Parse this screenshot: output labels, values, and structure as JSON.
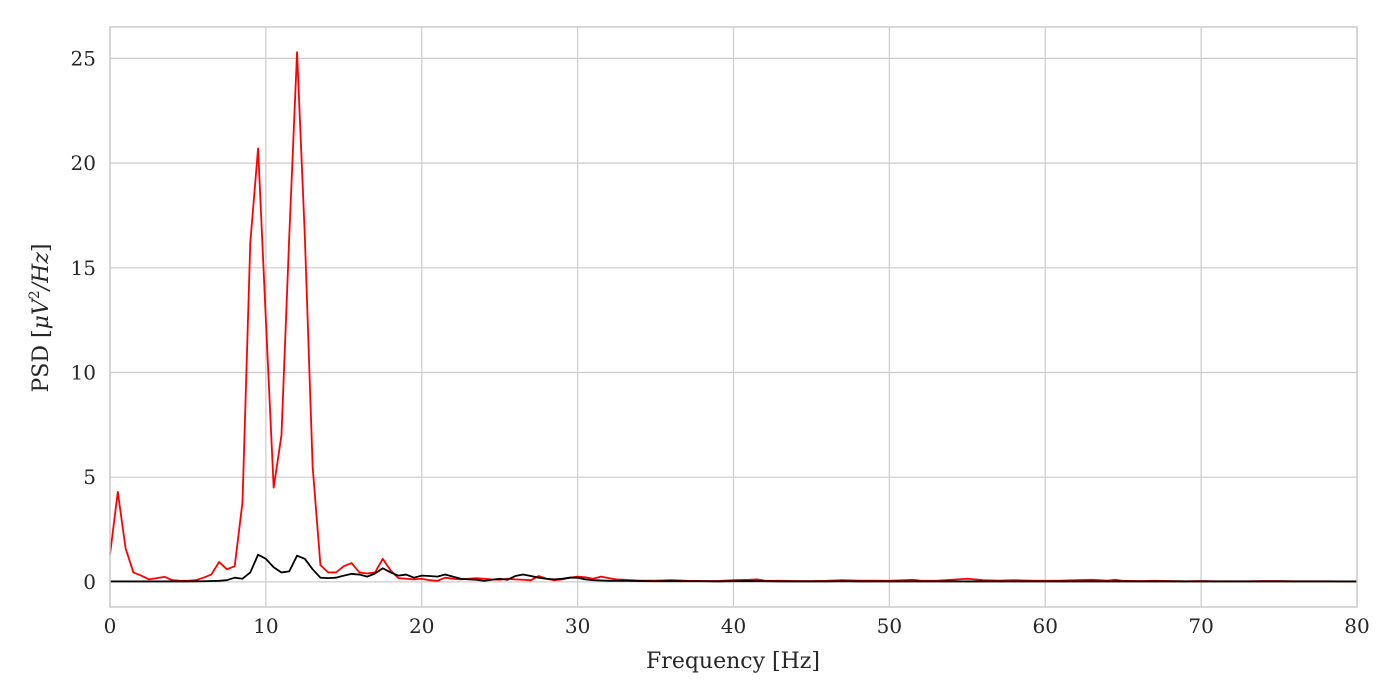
{
  "chart_data": {
    "type": "line",
    "xlabel": "Frequency [Hz]",
    "ylabel_parts": {
      "prefix": "PSD [",
      "mu": "μ",
      "v": "V",
      "exp": "2",
      "slash_hz": "/Hz",
      "suffix": "]"
    },
    "xlim": [
      0,
      80
    ],
    "ylim": [
      -1.2,
      26.5
    ],
    "xticks": [
      0,
      10,
      20,
      30,
      40,
      50,
      60,
      70,
      80
    ],
    "yticks": [
      0,
      5,
      10,
      15,
      20,
      25
    ],
    "grid": true,
    "series": [
      {
        "color": "#ff0000",
        "points": [
          [
            0,
            1.3
          ],
          [
            0.5,
            4.3
          ],
          [
            1,
            1.6
          ],
          [
            1.5,
            0.45
          ],
          [
            2,
            0.3
          ],
          [
            2.5,
            0.12
          ],
          [
            3,
            0.18
          ],
          [
            3.5,
            0.24
          ],
          [
            4,
            0.08
          ],
          [
            4.5,
            0.05
          ],
          [
            5,
            0.05
          ],
          [
            5.5,
            0.08
          ],
          [
            6,
            0.2
          ],
          [
            6.5,
            0.35
          ],
          [
            7,
            0.95
          ],
          [
            7.5,
            0.6
          ],
          [
            8,
            0.75
          ],
          [
            8.5,
            3.8
          ],
          [
            9,
            16.2
          ],
          [
            9.5,
            20.7
          ],
          [
            10,
            12.5
          ],
          [
            10.5,
            4.5
          ],
          [
            11,
            7.0
          ],
          [
            11.5,
            16.5
          ],
          [
            12,
            25.3
          ],
          [
            12.5,
            16.5
          ],
          [
            13,
            5.5
          ],
          [
            13.5,
            0.8
          ],
          [
            14,
            0.45
          ],
          [
            14.5,
            0.45
          ],
          [
            15,
            0.75
          ],
          [
            15.5,
            0.9
          ],
          [
            16,
            0.45
          ],
          [
            16.5,
            0.4
          ],
          [
            17,
            0.45
          ],
          [
            17.5,
            1.1
          ],
          [
            18,
            0.55
          ],
          [
            18.5,
            0.18
          ],
          [
            19,
            0.15
          ],
          [
            19.5,
            0.12
          ],
          [
            20,
            0.15
          ],
          [
            20.5,
            0.08
          ],
          [
            21,
            0.05
          ],
          [
            21.5,
            0.2
          ],
          [
            22,
            0.15
          ],
          [
            22.5,
            0.12
          ],
          [
            23,
            0.15
          ],
          [
            23.5,
            0.18
          ],
          [
            24,
            0.15
          ],
          [
            24.5,
            0.12
          ],
          [
            25,
            0.1
          ],
          [
            25.5,
            0.15
          ],
          [
            26,
            0.12
          ],
          [
            26.5,
            0.1
          ],
          [
            27,
            0.08
          ],
          [
            27.5,
            0.28
          ],
          [
            28,
            0.15
          ],
          [
            28.5,
            0.08
          ],
          [
            29,
            0.12
          ],
          [
            29.5,
            0.2
          ],
          [
            30,
            0.25
          ],
          [
            30.5,
            0.22
          ],
          [
            31,
            0.15
          ],
          [
            31.5,
            0.25
          ],
          [
            32,
            0.18
          ],
          [
            32.5,
            0.12
          ],
          [
            33,
            0.1
          ],
          [
            34,
            0.06
          ],
          [
            35,
            0.06
          ],
          [
            36,
            0.08
          ],
          [
            37,
            0.05
          ],
          [
            38,
            0.04
          ],
          [
            39,
            0.04
          ],
          [
            40,
            0.08
          ],
          [
            41,
            0.1
          ],
          [
            41.5,
            0.12
          ],
          [
            42,
            0.06
          ],
          [
            43,
            0.05
          ],
          [
            44,
            0.04
          ],
          [
            45,
            0.04
          ],
          [
            46,
            0.05
          ],
          [
            47,
            0.08
          ],
          [
            48,
            0.06
          ],
          [
            49,
            0.06
          ],
          [
            50,
            0.05
          ],
          [
            51,
            0.08
          ],
          [
            51.5,
            0.1
          ],
          [
            52,
            0.06
          ],
          [
            53,
            0.05
          ],
          [
            54,
            0.1
          ],
          [
            55,
            0.15
          ],
          [
            55.5,
            0.12
          ],
          [
            56,
            0.08
          ],
          [
            57,
            0.06
          ],
          [
            58,
            0.08
          ],
          [
            59,
            0.06
          ],
          [
            60,
            0.05
          ],
          [
            61,
            0.06
          ],
          [
            62,
            0.08
          ],
          [
            63,
            0.1
          ],
          [
            64,
            0.06
          ],
          [
            64.5,
            0.1
          ],
          [
            65,
            0.05
          ],
          [
            66,
            0.04
          ],
          [
            67,
            0.05
          ],
          [
            68,
            0.04
          ],
          [
            69,
            0.03
          ],
          [
            70,
            0.04
          ],
          [
            71,
            0.03
          ],
          [
            72,
            0.03
          ],
          [
            73,
            0.03
          ],
          [
            74,
            0.04
          ],
          [
            75,
            0.04
          ],
          [
            76,
            0.03
          ],
          [
            77,
            0.03
          ],
          [
            78,
            0.03
          ],
          [
            79,
            0.02
          ],
          [
            80,
            0.02
          ]
        ]
      },
      {
        "color": "#000000",
        "points": [
          [
            0,
            0.02
          ],
          [
            1,
            0.02
          ],
          [
            2,
            0.02
          ],
          [
            3,
            0.02
          ],
          [
            4,
            0.02
          ],
          [
            5,
            0.02
          ],
          [
            6,
            0.03
          ],
          [
            7,
            0.05
          ],
          [
            7.5,
            0.08
          ],
          [
            8,
            0.2
          ],
          [
            8.5,
            0.15
          ],
          [
            9,
            0.45
          ],
          [
            9.5,
            1.3
          ],
          [
            10,
            1.1
          ],
          [
            10.5,
            0.7
          ],
          [
            11,
            0.45
          ],
          [
            11.5,
            0.5
          ],
          [
            12,
            1.25
          ],
          [
            12.5,
            1.1
          ],
          [
            13,
            0.6
          ],
          [
            13.5,
            0.2
          ],
          [
            14,
            0.18
          ],
          [
            14.5,
            0.2
          ],
          [
            15,
            0.3
          ],
          [
            15.5,
            0.38
          ],
          [
            16,
            0.35
          ],
          [
            16.5,
            0.25
          ],
          [
            17,
            0.4
          ],
          [
            17.5,
            0.65
          ],
          [
            18,
            0.45
          ],
          [
            18.5,
            0.3
          ],
          [
            19,
            0.35
          ],
          [
            19.5,
            0.2
          ],
          [
            20,
            0.3
          ],
          [
            20.5,
            0.28
          ],
          [
            21,
            0.25
          ],
          [
            21.5,
            0.35
          ],
          [
            22,
            0.25
          ],
          [
            22.5,
            0.15
          ],
          [
            23,
            0.12
          ],
          [
            23.5,
            0.1
          ],
          [
            24,
            0.05
          ],
          [
            24.5,
            0.1
          ],
          [
            25,
            0.15
          ],
          [
            25.5,
            0.1
          ],
          [
            26,
            0.28
          ],
          [
            26.5,
            0.35
          ],
          [
            27,
            0.28
          ],
          [
            27.5,
            0.2
          ],
          [
            28,
            0.15
          ],
          [
            28.5,
            0.12
          ],
          [
            29,
            0.15
          ],
          [
            29.5,
            0.2
          ],
          [
            30,
            0.2
          ],
          [
            30.5,
            0.12
          ],
          [
            31,
            0.08
          ],
          [
            32,
            0.05
          ],
          [
            33,
            0.05
          ],
          [
            34,
            0.04
          ],
          [
            35,
            0.03
          ],
          [
            36,
            0.04
          ],
          [
            37,
            0.03
          ],
          [
            38,
            0.03
          ],
          [
            39,
            0.02
          ],
          [
            40,
            0.03
          ],
          [
            41,
            0.04
          ],
          [
            42,
            0.03
          ],
          [
            43,
            0.02
          ],
          [
            44,
            0.02
          ],
          [
            45,
            0.02
          ],
          [
            46,
            0.02
          ],
          [
            47,
            0.03
          ],
          [
            48,
            0.02
          ],
          [
            49,
            0.02
          ],
          [
            50,
            0.02
          ],
          [
            51,
            0.02
          ],
          [
            52,
            0.02
          ],
          [
            53,
            0.02
          ],
          [
            54,
            0.02
          ],
          [
            55,
            0.02
          ],
          [
            56,
            0.02
          ],
          [
            57,
            0.02
          ],
          [
            58,
            0.02
          ],
          [
            59,
            0.02
          ],
          [
            60,
            0.02
          ],
          [
            61,
            0.02
          ],
          [
            62,
            0.02
          ],
          [
            63,
            0.02
          ],
          [
            64,
            0.02
          ],
          [
            65,
            0.02
          ],
          [
            66,
            0.02
          ],
          [
            67,
            0.02
          ],
          [
            68,
            0.02
          ],
          [
            69,
            0.02
          ],
          [
            70,
            0.02
          ],
          [
            71,
            0.02
          ],
          [
            72,
            0.02
          ],
          [
            73,
            0.02
          ],
          [
            74,
            0.02
          ],
          [
            75,
            0.02
          ],
          [
            76,
            0.02
          ],
          [
            77,
            0.02
          ],
          [
            78,
            0.02
          ],
          [
            79,
            0.02
          ],
          [
            80,
            0.02
          ]
        ]
      }
    ]
  }
}
